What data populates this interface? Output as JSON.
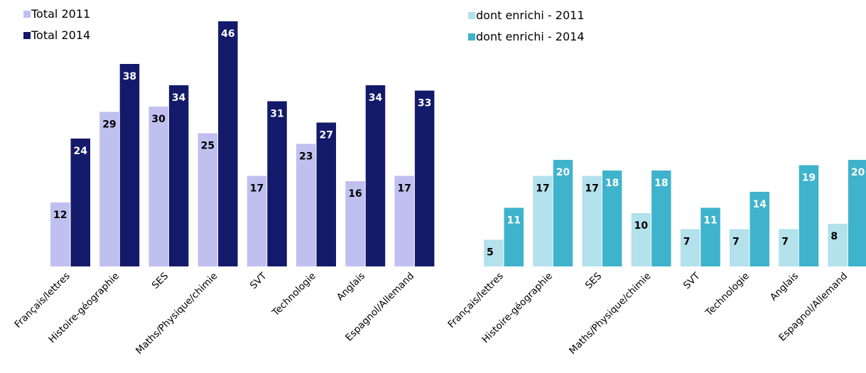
{
  "chart_data": [
    {
      "type": "bar",
      "categories": [
        "Français/lettres",
        "Histoire-géographie",
        "SES",
        "Maths/Physique/chimie",
        "SVT",
        "Technologie",
        "Anglais",
        "Espagnol/Allemand"
      ],
      "series": [
        {
          "name": "Total 2011",
          "color": "#c0c0f0",
          "label_color": "#000000",
          "values": [
            12,
            29,
            30,
            25,
            17,
            23,
            16,
            17
          ]
        },
        {
          "name": "Total 2014",
          "color": "#141a6a",
          "label_color": "#ffffff",
          "values": [
            24,
            38,
            34,
            46,
            31,
            27,
            34,
            33
          ]
        }
      ],
      "ylim": [
        0,
        48
      ],
      "legend": "top-left",
      "grid": false
    },
    {
      "type": "bar",
      "categories": [
        "Français/lettres",
        "Histoire-géographie",
        "SES",
        "Maths/Physique/chimie",
        "SVT",
        "Technologie",
        "Anglais",
        "Espagnol/Allemand"
      ],
      "series": [
        {
          "name": "dont enrichi - 2011",
          "color": "#b3e1ec",
          "label_color": "#000000",
          "values": [
            5,
            17,
            17,
            10,
            7,
            7,
            7,
            8
          ]
        },
        {
          "name": "dont enrichi - 2014",
          "color": "#3fb3cc",
          "label_color": "#ffffff",
          "values": [
            11,
            20,
            18,
            18,
            11,
            14,
            19,
            20
          ]
        }
      ],
      "ylim": [
        0,
        48
      ],
      "legend": "top-left",
      "grid": false
    }
  ]
}
